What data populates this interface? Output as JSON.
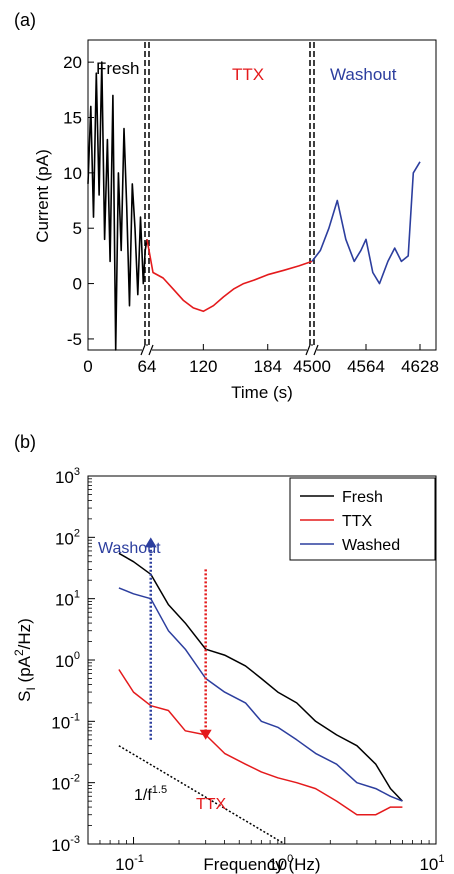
{
  "chart_data": [
    {
      "panel_label": "(a)",
      "type": "line",
      "xlabel": "Time (s)",
      "ylabel": "Current (pA)",
      "ylim": [
        -6,
        22
      ],
      "yticks": [
        -5,
        0,
        5,
        10,
        15,
        20
      ],
      "xticks": [
        "0",
        "64",
        "120",
        "184",
        "4500",
        "4564",
        "4628"
      ],
      "axis_breaks": [
        "64",
        "4500"
      ],
      "segment_labels": [
        "Fresh",
        "TTX",
        "Washout"
      ],
      "series": [
        {
          "name": "Fresh",
          "color": "#000000",
          "points": [
            [
              0,
              9
            ],
            [
              3,
              16
            ],
            [
              6,
              6
            ],
            [
              9,
              19
            ],
            [
              12,
              8
            ],
            [
              15,
              20
            ],
            [
              18,
              4
            ],
            [
              21,
              13
            ],
            [
              24,
              2
            ],
            [
              27,
              17
            ],
            [
              30,
              -6
            ],
            [
              33,
              10
            ],
            [
              36,
              3
            ],
            [
              39,
              14
            ],
            [
              42,
              7
            ],
            [
              45,
              -2
            ],
            [
              48,
              9
            ],
            [
              51,
              5
            ],
            [
              54,
              -1
            ],
            [
              57,
              6
            ],
            [
              60,
              0
            ],
            [
              62,
              3
            ],
            [
              64,
              4
            ]
          ]
        },
        {
          "name": "TTX",
          "color": "#e41a1c",
          "points": [
            [
              64,
              4
            ],
            [
              70,
              1
            ],
            [
              80,
              0.5
            ],
            [
              90,
              -0.5
            ],
            [
              100,
              -1.5
            ],
            [
              110,
              -2.2
            ],
            [
              120,
              -2.5
            ],
            [
              130,
              -2
            ],
            [
              140,
              -1.2
            ],
            [
              150,
              -0.5
            ],
            [
              160,
              0
            ],
            [
              170,
              0.3
            ],
            [
              184,
              0.8
            ],
            [
              200,
              1.2
            ],
            [
              215,
              1.6
            ],
            [
              228,
              2
            ]
          ]
        },
        {
          "name": "Washout",
          "color": "#2c3e9e",
          "points": [
            [
              4500,
              2
            ],
            [
              4510,
              3
            ],
            [
              4520,
              5
            ],
            [
              4530,
              7.5
            ],
            [
              4540,
              4
            ],
            [
              4550,
              2
            ],
            [
              4558,
              3
            ],
            [
              4564,
              4
            ],
            [
              4572,
              1
            ],
            [
              4580,
              0
            ],
            [
              4590,
              2
            ],
            [
              4598,
              3.2
            ],
            [
              4606,
              2
            ],
            [
              4614,
              2.5
            ],
            [
              4620,
              10
            ],
            [
              4628,
              11
            ]
          ]
        }
      ]
    },
    {
      "panel_label": "(b)",
      "type": "line",
      "xlabel": "Frequency (Hz)",
      "ylabel": "S_I (pA²/Hz)",
      "xscale": "log",
      "yscale": "log",
      "xlim": [
        0.05,
        10
      ],
      "ylim": [
        0.001,
        1000
      ],
      "xticks": [
        "10^-1",
        "10^0",
        "10^1"
      ],
      "yticks": [
        "10^-3",
        "10^-2",
        "10^-1",
        "10^0",
        "10^1",
        "10^2",
        "10^3"
      ],
      "legend_position": "top-right",
      "annotations": [
        "Washout",
        "TTX",
        "1/f^1.5"
      ],
      "series": [
        {
          "name": "Fresh",
          "color": "#000000",
          "x": [
            0.08,
            0.1,
            0.13,
            0.17,
            0.22,
            0.3,
            0.4,
            0.55,
            0.7,
            0.9,
            1.2,
            1.6,
            2.2,
            3,
            4,
            5,
            6
          ],
          "y": [
            55,
            40,
            25,
            8,
            4,
            1.5,
            1.2,
            0.8,
            0.5,
            0.3,
            0.2,
            0.1,
            0.06,
            0.04,
            0.02,
            0.008,
            0.005
          ]
        },
        {
          "name": "TTX",
          "color": "#e41a1c",
          "x": [
            0.08,
            0.1,
            0.13,
            0.17,
            0.22,
            0.3,
            0.4,
            0.55,
            0.7,
            0.9,
            1.2,
            1.6,
            2.2,
            3,
            4,
            5,
            6
          ],
          "y": [
            0.7,
            0.3,
            0.18,
            0.15,
            0.07,
            0.06,
            0.03,
            0.02,
            0.015,
            0.012,
            0.01,
            0.008,
            0.005,
            0.003,
            0.003,
            0.004,
            0.004
          ]
        },
        {
          "name": "Washed",
          "color": "#2c3e9e",
          "x": [
            0.08,
            0.1,
            0.13,
            0.17,
            0.22,
            0.3,
            0.4,
            0.55,
            0.7,
            0.9,
            1.2,
            1.6,
            2.2,
            3,
            4,
            5,
            6
          ],
          "y": [
            15,
            12,
            10,
            3,
            1.5,
            0.5,
            0.3,
            0.2,
            0.1,
            0.08,
            0.05,
            0.03,
            0.02,
            0.01,
            0.008,
            0.006,
            0.005
          ]
        }
      ],
      "reference_line": {
        "name": "1/f^1.5",
        "style": "dotted",
        "points": [
          [
            0.08,
            0.04
          ],
          [
            1.0,
            0.001
          ]
        ]
      },
      "arrows": [
        {
          "label": "Washout",
          "color": "#2c3e9e",
          "x": 0.13,
          "from": 0.05,
          "to": 100,
          "style": "dotted"
        },
        {
          "label": "TTX",
          "color": "#e41a1c",
          "x": 0.3,
          "from": 30,
          "to": 0.05,
          "style": "dotted"
        }
      ]
    }
  ]
}
